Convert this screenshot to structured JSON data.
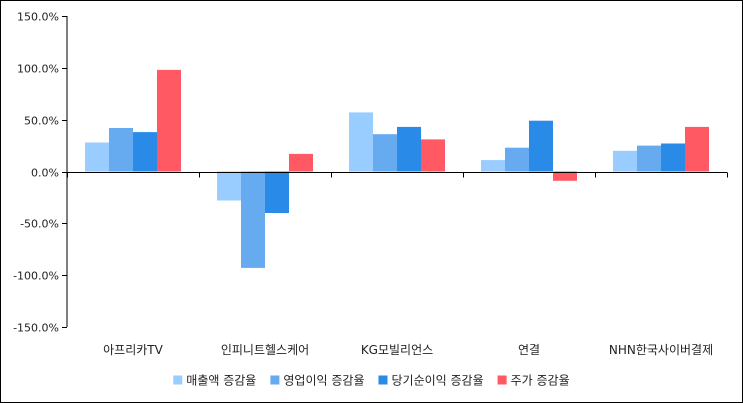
{
  "chart_data": {
    "type": "bar",
    "categories": [
      "아프리카TV",
      "인피니트헬스케어",
      "KG모빌리언스",
      "연결",
      "NHN한국사이버결제"
    ],
    "series": [
      {
        "name": "매출액 증감율",
        "color": "#99ccff",
        "values": [
          28,
          -28,
          57,
          11,
          20
        ]
      },
      {
        "name": "영업이익 증감율",
        "color": "#66aaf0",
        "values": [
          42,
          -93,
          36,
          23,
          25
        ]
      },
      {
        "name": "당기순이익 증감율",
        "color": "#2a8ae8",
        "values": [
          38,
          -40,
          43,
          49,
          27
        ]
      },
      {
        "name": "주가 증감율",
        "color": "#ff5a64",
        "values": [
          98,
          17,
          31,
          -9,
          43
        ]
      }
    ],
    "ylim": [
      -150,
      150
    ],
    "yticks": [
      -150,
      -100,
      -50,
      0,
      50,
      100,
      150
    ],
    "ytick_labels": [
      "-150.0%",
      "-100.0%",
      "-50.0%",
      "0.0%",
      "50.0%",
      "100.0%",
      "150.0%"
    ],
    "legend_position": "bottom",
    "grid": false
  }
}
